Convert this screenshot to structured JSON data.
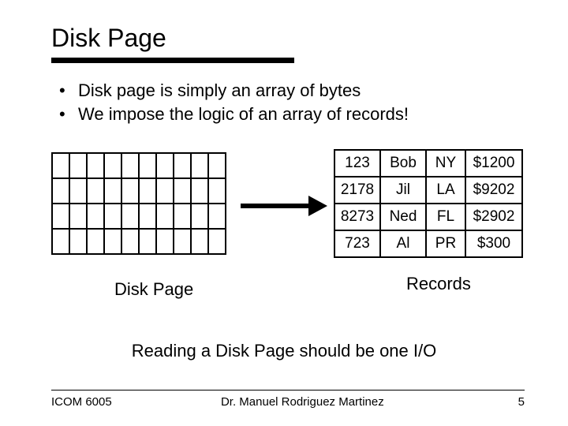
{
  "title": "Disk Page",
  "bullets": [
    "Disk page is simply an array of bytes",
    "We impose the logic of an array of records!"
  ],
  "byte_grid": {
    "rows": 4,
    "cols": 10
  },
  "records": {
    "rows": [
      [
        "123",
        "Bob",
        "NY",
        "$1200"
      ],
      [
        "2178",
        "Jil",
        "LA",
        "$9202"
      ],
      [
        "8273",
        "Ned",
        "FL",
        "$2902"
      ],
      [
        "723",
        "Al",
        "PR",
        "$300"
      ]
    ]
  },
  "labels": {
    "disk_page": "Disk Page",
    "records": "Records"
  },
  "subtitle": "Reading a Disk Page should be one I/O",
  "footer": {
    "left": "ICOM 6005",
    "center": "Dr. Manuel Rodriguez Martinez",
    "page": "5"
  },
  "colors": {
    "text": "#000000",
    "background": "#ffffff",
    "border": "#000000"
  }
}
